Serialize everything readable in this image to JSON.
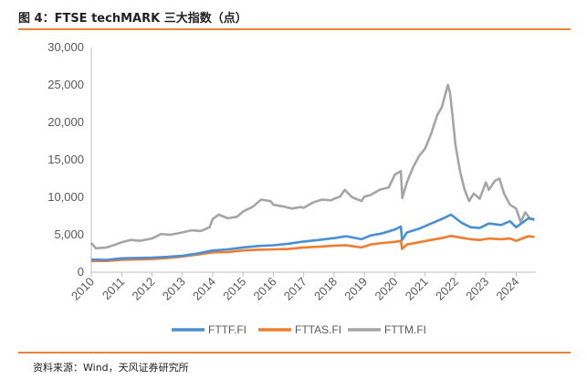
{
  "header": {
    "title": "图 4：FTSE techMARK 三大指数（点）"
  },
  "footer": {
    "source": "资料来源：Wind，天风证券研究所"
  },
  "chart_data": {
    "type": "line",
    "title": "",
    "xlabel": "",
    "ylabel": "",
    "xlim": [
      2010.0,
      2024.65
    ],
    "ylim": [
      0,
      30000
    ],
    "x_ticks": [
      "2010",
      "2011",
      "2012",
      "2013",
      "2014",
      "2015",
      "2016",
      "2017",
      "2018",
      "2019",
      "2020",
      "2021",
      "2022",
      "2023",
      "2024"
    ],
    "y_ticks": [
      "0",
      "5,000",
      "10,000",
      "15,000",
      "20,000",
      "25,000",
      "30,000"
    ],
    "legend_position": "bottom",
    "grid": false,
    "series": [
      {
        "name": "FTTF.FI",
        "color": "#4a8fd4",
        "points": [
          [
            2010.0,
            1700
          ],
          [
            2010.5,
            1650
          ],
          [
            2011.0,
            1850
          ],
          [
            2011.5,
            1900
          ],
          [
            2012.0,
            1950
          ],
          [
            2012.5,
            2050
          ],
          [
            2013.0,
            2200
          ],
          [
            2013.5,
            2500
          ],
          [
            2014.0,
            2900
          ],
          [
            2014.5,
            3050
          ],
          [
            2015.0,
            3300
          ],
          [
            2015.5,
            3500
          ],
          [
            2016.0,
            3600
          ],
          [
            2016.5,
            3800
          ],
          [
            2017.0,
            4100
          ],
          [
            2017.5,
            4300
          ],
          [
            2018.0,
            4550
          ],
          [
            2018.4,
            4800
          ],
          [
            2018.9,
            4400
          ],
          [
            2019.2,
            4900
          ],
          [
            2019.6,
            5200
          ],
          [
            2020.0,
            5700
          ],
          [
            2020.2,
            6100
          ],
          [
            2020.24,
            4300
          ],
          [
            2020.4,
            5300
          ],
          [
            2020.8,
            5800
          ],
          [
            2021.2,
            6500
          ],
          [
            2021.6,
            7200
          ],
          [
            2021.85,
            7700
          ],
          [
            2022.2,
            6600
          ],
          [
            2022.5,
            6000
          ],
          [
            2022.8,
            5900
          ],
          [
            2023.1,
            6500
          ],
          [
            2023.5,
            6300
          ],
          [
            2023.8,
            6800
          ],
          [
            2024.0,
            6000
          ],
          [
            2024.2,
            6600
          ],
          [
            2024.4,
            7200
          ],
          [
            2024.6,
            7000
          ]
        ]
      },
      {
        "name": "FTTAS.FI",
        "color": "#ed7d31",
        "points": [
          [
            2010.0,
            1500
          ],
          [
            2010.5,
            1500
          ],
          [
            2011.0,
            1650
          ],
          [
            2011.5,
            1700
          ],
          [
            2012.0,
            1750
          ],
          [
            2012.5,
            1900
          ],
          [
            2013.0,
            2100
          ],
          [
            2013.5,
            2350
          ],
          [
            2014.0,
            2650
          ],
          [
            2014.5,
            2700
          ],
          [
            2015.0,
            2900
          ],
          [
            2015.5,
            3000
          ],
          [
            2016.0,
            3050
          ],
          [
            2016.5,
            3100
          ],
          [
            2017.0,
            3300
          ],
          [
            2017.5,
            3400
          ],
          [
            2018.0,
            3550
          ],
          [
            2018.4,
            3600
          ],
          [
            2018.9,
            3300
          ],
          [
            2019.2,
            3700
          ],
          [
            2019.6,
            3900
          ],
          [
            2020.0,
            4050
          ],
          [
            2020.2,
            4200
          ],
          [
            2020.24,
            3100
          ],
          [
            2020.4,
            3700
          ],
          [
            2020.8,
            4000
          ],
          [
            2021.2,
            4300
          ],
          [
            2021.6,
            4600
          ],
          [
            2021.85,
            4850
          ],
          [
            2022.2,
            4600
          ],
          [
            2022.5,
            4400
          ],
          [
            2022.8,
            4300
          ],
          [
            2023.1,
            4500
          ],
          [
            2023.5,
            4400
          ],
          [
            2023.8,
            4500
          ],
          [
            2024.0,
            4200
          ],
          [
            2024.2,
            4500
          ],
          [
            2024.4,
            4800
          ],
          [
            2024.6,
            4700
          ]
        ]
      },
      {
        "name": "FTTM.FI",
        "color": "#a5a5a5",
        "points": [
          [
            2010.0,
            3900
          ],
          [
            2010.15,
            3200
          ],
          [
            2010.5,
            3300
          ],
          [
            2010.8,
            3700
          ],
          [
            2011.0,
            4000
          ],
          [
            2011.3,
            4300
          ],
          [
            2011.6,
            4200
          ],
          [
            2012.0,
            4500
          ],
          [
            2012.3,
            5100
          ],
          [
            2012.6,
            5000
          ],
          [
            2013.0,
            5300
          ],
          [
            2013.3,
            5600
          ],
          [
            2013.6,
            5500
          ],
          [
            2013.9,
            6000
          ],
          [
            2014.0,
            7100
          ],
          [
            2014.2,
            7700
          ],
          [
            2014.5,
            7200
          ],
          [
            2014.8,
            7400
          ],
          [
            2015.0,
            8100
          ],
          [
            2015.3,
            8700
          ],
          [
            2015.6,
            9700
          ],
          [
            2015.9,
            9500
          ],
          [
            2016.0,
            9000
          ],
          [
            2016.3,
            8800
          ],
          [
            2016.6,
            8500
          ],
          [
            2016.9,
            8700
          ],
          [
            2017.0,
            8600
          ],
          [
            2017.3,
            9300
          ],
          [
            2017.6,
            9700
          ],
          [
            2017.9,
            9600
          ],
          [
            2018.0,
            9800
          ],
          [
            2018.2,
            10100
          ],
          [
            2018.35,
            11000
          ],
          [
            2018.6,
            10000
          ],
          [
            2018.9,
            9500
          ],
          [
            2019.0,
            10100
          ],
          [
            2019.2,
            10300
          ],
          [
            2019.5,
            11000
          ],
          [
            2019.8,
            11300
          ],
          [
            2020.0,
            13000
          ],
          [
            2020.2,
            13500
          ],
          [
            2020.25,
            9900
          ],
          [
            2020.4,
            12000
          ],
          [
            2020.6,
            14000
          ],
          [
            2020.8,
            15500
          ],
          [
            2021.0,
            16500
          ],
          [
            2021.2,
            18500
          ],
          [
            2021.4,
            21000
          ],
          [
            2021.55,
            22000
          ],
          [
            2021.75,
            25000
          ],
          [
            2021.82,
            24000
          ],
          [
            2021.9,
            21000
          ],
          [
            2022.0,
            17000
          ],
          [
            2022.15,
            13500
          ],
          [
            2022.3,
            11000
          ],
          [
            2022.45,
            9500
          ],
          [
            2022.6,
            10500
          ],
          [
            2022.8,
            9800
          ],
          [
            2023.0,
            12000
          ],
          [
            2023.1,
            11000
          ],
          [
            2023.3,
            12200
          ],
          [
            2023.45,
            12500
          ],
          [
            2023.6,
            10500
          ],
          [
            2023.8,
            9000
          ],
          [
            2024.0,
            8500
          ],
          [
            2024.15,
            6700
          ],
          [
            2024.3,
            8000
          ],
          [
            2024.45,
            7200
          ],
          [
            2024.6,
            7100
          ]
        ]
      }
    ]
  }
}
